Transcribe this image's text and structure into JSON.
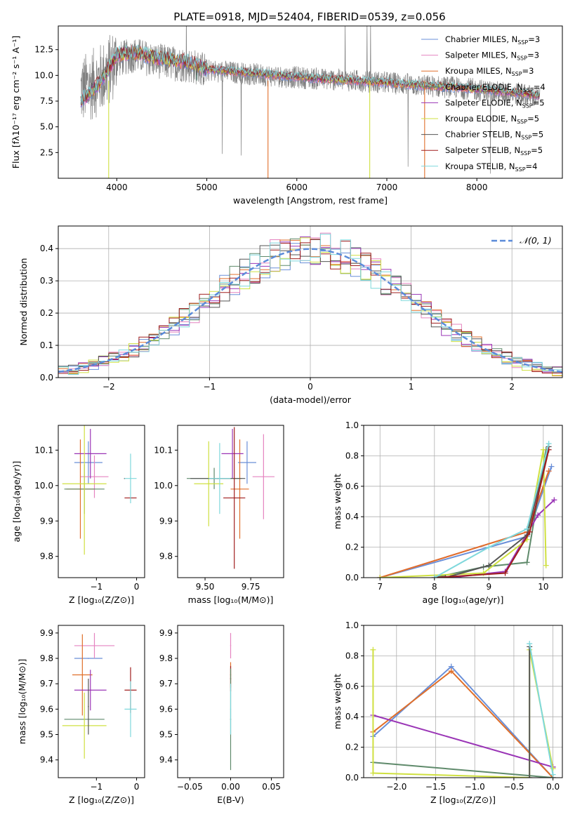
{
  "title": "PLATE=0918, MJD=52404, FIBERID=0539, z=0.056",
  "colors": {
    "Chabrier MILES": "#6a8fd8",
    "Salpeter MILES": "#e584c0",
    "Kroupa MILES": "#e06f2a",
    "Chabrier ELODIE": "#5f8a6b",
    "Salpeter ELODIE": "#9a35b6",
    "Kroupa ELODIE": "#cfe040",
    "Chabrier STELIB": "#555555",
    "Salpeter STELIB": "#a01e1e",
    "Kroupa STELIB": "#7fd8dc",
    "data": "#808080",
    "normal": "#5b8bd9"
  },
  "chart_data": [
    {
      "id": "spectrum",
      "type": "line",
      "title": "PLATE=0918, MJD=52404, FIBERID=0539, z=0.056",
      "xlabel": "wavelength [Angstrom, rest frame]",
      "ylabel": "Flux [fλ10⁻¹⁷ erg cm⁻² s⁻¹ A⁻¹]",
      "xlim": [
        3350,
        8950
      ],
      "ylim": [
        0,
        14.8
      ],
      "xticks": [
        "4000",
        "5000",
        "6000",
        "7000",
        "8000"
      ],
      "yticks": [
        "2.5",
        "5.0",
        "7.5",
        "10.0",
        "12.5"
      ],
      "legend_position": "top-right",
      "legend": [
        {
          "main": "Chabrier MILES, N",
          "sub": "SSP",
          "tail": "=3",
          "color": "#6a8fd8"
        },
        {
          "main": "Salpeter MILES, N",
          "sub": "SSP",
          "tail": "=3",
          "color": "#e584c0"
        },
        {
          "main": "Kroupa MILES, N",
          "sub": "SSP",
          "tail": "=3",
          "color": "#e06f2a"
        },
        {
          "main": "Chabrier ELODIE, N",
          "sub": "SSP",
          "tail": "=4",
          "color": "#5f8a6b"
        },
        {
          "main": "Salpeter ELODIE, N",
          "sub": "SSP",
          "tail": "=5",
          "color": "#9a35b6"
        },
        {
          "main": "Kroupa ELODIE, N",
          "sub": "SSP",
          "tail": "=5",
          "color": "#cfe040"
        },
        {
          "main": "Chabrier STELIB, N",
          "sub": "SSP",
          "tail": "=5",
          "color": "#555555"
        },
        {
          "main": "Salpeter STELIB, N",
          "sub": "SSP",
          "tail": "=5",
          "color": "#a01e1e"
        },
        {
          "main": "Kroupa STELIB, N",
          "sub": "SSP",
          "tail": "=4",
          "color": "#7fd8dc"
        }
      ],
      "series": [
        {
          "name": "data",
          "x": [
            3600,
            3700,
            3800,
            3900,
            4000,
            4200,
            4400,
            4600,
            4800,
            5000,
            5400,
            5800,
            6200,
            6600,
            7000,
            7400,
            7800,
            8200,
            8500,
            8700
          ],
          "y": [
            8.5,
            9.0,
            9.5,
            10.3,
            11.5,
            12.0,
            11.5,
            11.2,
            11.0,
            10.5,
            10.2,
            9.9,
            9.7,
            9.5,
            9.3,
            9.0,
            8.8,
            8.4,
            8.2,
            7.8
          ]
        },
        {
          "name": "model",
          "x": [
            3600,
            3700,
            3800,
            3900,
            4000,
            4200,
            4400,
            4600,
            4800,
            5000,
            5400,
            5800,
            6200,
            6600,
            7000,
            7400,
            7800,
            8200,
            8500,
            8700
          ],
          "y": [
            7.5,
            8.3,
            9.2,
            10.5,
            12.0,
            12.2,
            11.8,
            11.5,
            11.3,
            10.6,
            10.3,
            10.0,
            9.7,
            9.5,
            9.3,
            9.0,
            8.8,
            8.5,
            8.3,
            8.0
          ]
        }
      ]
    },
    {
      "id": "residuals",
      "type": "line",
      "xlabel": "(data-model)/error",
      "ylabel": "Normed distribution",
      "xlim": [
        -2.5,
        2.5
      ],
      "ylim": [
        0,
        0.47
      ],
      "xticks": [
        "−2",
        "−1",
        "0",
        "1",
        "2"
      ],
      "yticks": [
        "0.0",
        "0.1",
        "0.2",
        "0.3",
        "0.4"
      ],
      "grid": true,
      "legend_position": "top-right",
      "legend_label": "𝒩(0, 1)",
      "normal": {
        "mean": 0,
        "sigma": 1
      },
      "bin_edges_range": [
        -2.5,
        2.5
      ],
      "bin_width": 0.1
    },
    {
      "id": "age_vs_Z",
      "type": "scatter",
      "xlabel": "Z [log₁₀(Z/Z⊙)]",
      "ylabel": "age  [log₁₀(age/yr)]",
      "xlim": [
        -1.95,
        0.2
      ],
      "ylim": [
        9.74,
        10.17
      ],
      "xticks": [
        "−1",
        "0"
      ],
      "yticks": [
        "9.8",
        "9.9",
        "10.0",
        "10.1"
      ],
      "points": [
        {
          "series": "Chabrier MILES",
          "x": -1.2,
          "y": 10.065,
          "xerr": 0.35,
          "yerr": 0.06
        },
        {
          "series": "Salpeter MILES",
          "x": -1.05,
          "y": 10.025,
          "xerr": 0.35,
          "yerr": 0.06
        },
        {
          "series": "Kroupa MILES",
          "x": -1.4,
          "y": 9.99,
          "xerr": 0.35,
          "yerr": 0.14
        },
        {
          "series": "Chabrier ELODIE",
          "x": -1.3,
          "y": 9.99,
          "xerr": 0.5,
          "yerr": 0.07
        },
        {
          "series": "Salpeter ELODIE",
          "x": -1.15,
          "y": 10.09,
          "xerr": 0.4,
          "yerr": 0.07
        },
        {
          "series": "Kroupa ELODIE",
          "x": -1.3,
          "y": 10.005,
          "xerr": 0.55,
          "yerr": 0.2
        },
        {
          "series": "Chabrier STELIB",
          "x": -0.3,
          "y": 10.02,
          "xerr": 0.0,
          "yerr": 0.0
        },
        {
          "series": "Salpeter STELIB",
          "x": -0.15,
          "y": 9.965,
          "xerr": 0.15,
          "yerr": 0.0
        },
        {
          "series": "Kroupa STELIB",
          "x": -0.15,
          "y": 10.02,
          "xerr": 0.15,
          "yerr": 0.07
        }
      ]
    },
    {
      "id": "age_vs_mass",
      "type": "scatter",
      "xlabel": "mass [log₁₀(M/M⊙)]",
      "xlim": [
        9.35,
        9.93
      ],
      "ylim": [
        9.74,
        10.17
      ],
      "xticks": [
        "9.50",
        "9.75"
      ],
      "yticks": [
        "9.8",
        "9.9",
        "10.0",
        "10.1"
      ],
      "points": [
        {
          "series": "Chabrier MILES",
          "x": 9.73,
          "y": 10.065,
          "xerr": 0.05,
          "yerr": 0.06
        },
        {
          "series": "Salpeter MILES",
          "x": 9.82,
          "y": 10.025,
          "xerr": 0.06,
          "yerr": 0.12
        },
        {
          "series": "Kroupa MILES",
          "x": 9.69,
          "y": 9.99,
          "xerr": 0.05,
          "yerr": 0.14
        },
        {
          "series": "Chabrier ELODIE",
          "x": 9.55,
          "y": 10.02,
          "xerr": 0.15,
          "yerr": 0.03
        },
        {
          "series": "Salpeter ELODIE",
          "x": 9.65,
          "y": 10.09,
          "xerr": 0.06,
          "yerr": 0.07
        },
        {
          "series": "Kroupa ELODIE",
          "x": 9.52,
          "y": 10.005,
          "xerr": 0.08,
          "yerr": 0.12
        },
        {
          "series": "Chabrier STELIB",
          "x": 9.57,
          "y": 10.02,
          "xerr": 0.15,
          "yerr": 0.0
        },
        {
          "series": "Salpeter STELIB",
          "x": 9.66,
          "y": 9.965,
          "xerr": 0.06,
          "yerr": 0.2
        },
        {
          "series": "Kroupa STELIB",
          "x": 9.58,
          "y": 10.02,
          "xerr": 0.06,
          "yerr": 0.1
        }
      ]
    },
    {
      "id": "weight_vs_age",
      "type": "line",
      "xlabel": "age  [log₁₀(age/yr)]",
      "ylabel": "mass weight",
      "xlim": [
        6.7,
        10.35
      ],
      "ylim": [
        0,
        1.0
      ],
      "xticks": [
        "7",
        "8",
        "9",
        "10"
      ],
      "yticks": [
        "0.0",
        "0.2",
        "0.4",
        "0.6",
        "0.8",
        "1.0"
      ],
      "grid": true,
      "series": [
        {
          "name": "Chabrier MILES",
          "x": [
            7.0,
            9.7,
            10.15
          ],
          "y": [
            0.0,
            0.27,
            0.73
          ]
        },
        {
          "name": "Salpeter MILES",
          "x": [
            7.0,
            9.7,
            10.1
          ],
          "y": [
            0.0,
            0.3,
            0.7
          ]
        },
        {
          "name": "Kroupa MILES",
          "x": [
            7.0,
            9.7,
            10.1
          ],
          "y": [
            0.0,
            0.3,
            0.7
          ]
        },
        {
          "name": "Chabrier ELODIE",
          "x": [
            8.0,
            8.9,
            9.7,
            10.05
          ],
          "y": [
            0.0,
            0.07,
            0.1,
            0.84
          ]
        },
        {
          "name": "Salpeter ELODIE",
          "x": [
            8.3,
            9.3,
            9.9,
            10.2
          ],
          "y": [
            0.0,
            0.04,
            0.41,
            0.51
          ]
        },
        {
          "name": "Kroupa ELODIE",
          "x": [
            7.0,
            8.9,
            9.7,
            10.0,
            10.05
          ],
          "y": [
            0.0,
            0.03,
            0.25,
            0.84,
            0.08
          ]
        },
        {
          "name": "Chabrier STELIB",
          "x": [
            8.2,
            9.0,
            9.7,
            10.1
          ],
          "y": [
            0.0,
            0.08,
            0.28,
            0.86
          ]
        },
        {
          "name": "Salpeter STELIB",
          "x": [
            8.0,
            9.3,
            9.75,
            10.1
          ],
          "y": [
            0.0,
            0.03,
            0.3,
            0.84
          ]
        },
        {
          "name": "Kroupa STELIB",
          "x": [
            8.0,
            9.0,
            9.7,
            10.1
          ],
          "y": [
            0.0,
            0.2,
            0.32,
            0.88
          ]
        }
      ]
    },
    {
      "id": "mass_vs_Z",
      "type": "scatter",
      "xlabel": "Z [log₁₀(Z/Z⊙)]",
      "ylabel": "mass [log₁₀(M/M⊙)]",
      "xlim": [
        -1.95,
        0.2
      ],
      "ylim": [
        9.33,
        9.93
      ],
      "xticks": [
        "−1",
        "0"
      ],
      "yticks": [
        "9.4",
        "9.5",
        "9.6",
        "9.7",
        "9.8",
        "9.9"
      ],
      "points": [
        {
          "series": "Chabrier MILES",
          "x": -1.2,
          "y": 9.8,
          "xerr": 0.35,
          "yerr": 0.0
        },
        {
          "series": "Salpeter MILES",
          "x": -1.05,
          "y": 9.85,
          "xerr": 0.5,
          "yerr": 0.05
        },
        {
          "series": "Kroupa MILES",
          "x": -1.35,
          "y": 9.735,
          "xerr": 0.25,
          "yerr": 0.16
        },
        {
          "series": "Chabrier ELODIE",
          "x": -1.3,
          "y": 9.56,
          "xerr": 0.5,
          "yerr": 0.0
        },
        {
          "series": "Salpeter ELODIE",
          "x": -1.15,
          "y": 9.675,
          "xerr": 0.4,
          "yerr": 0.08
        },
        {
          "series": "Kroupa ELODIE",
          "x": -1.3,
          "y": 9.535,
          "xerr": 0.55,
          "yerr": 0.13
        },
        {
          "series": "Chabrier STELIB",
          "x": -1.2,
          "y": 9.61,
          "xerr": 0.0,
          "yerr": 0.11
        },
        {
          "series": "Salpeter STELIB",
          "x": -0.15,
          "y": 9.675,
          "xerr": 0.15,
          "yerr": 0.09
        },
        {
          "series": "Kroupa STELIB",
          "x": -0.15,
          "y": 9.6,
          "xerr": 0.15,
          "yerr": 0.11
        }
      ]
    },
    {
      "id": "mass_vs_ebv",
      "type": "scatter",
      "xlabel": "E(B-V)",
      "xlim": [
        -0.065,
        0.065
      ],
      "ylim": [
        9.33,
        9.93
      ],
      "xticks": [
        "−0.05",
        "0.00",
        "0.05"
      ],
      "yticks": [
        "9.4",
        "9.5",
        "9.6",
        "9.7",
        "9.8",
        "9.9"
      ],
      "points": [
        {
          "series": "Salpeter MILES",
          "x": 0.0,
          "y": 9.85,
          "xerr": 0.0,
          "yerr": 0.05
        },
        {
          "series": "Kroupa MILES",
          "x": 0.0,
          "y": 9.735,
          "xerr": 0.0,
          "yerr": 0.05
        },
        {
          "series": "Salpeter STELIB",
          "x": 0.0,
          "y": 9.72,
          "xerr": 0.0,
          "yerr": 0.05
        },
        {
          "series": "Chabrier ELODIE",
          "x": 0.0,
          "y": 9.56,
          "xerr": 0.0,
          "yerr": 0.2
        },
        {
          "series": "Kroupa STELIB",
          "x": 0.0,
          "y": 9.6,
          "xerr": 0.0,
          "yerr": 0.1
        }
      ]
    },
    {
      "id": "weight_vs_Z",
      "type": "line",
      "xlabel": "Z [log₁₀(Z/Z⊙)]",
      "ylabel": "mass weight",
      "xlim": [
        -2.42,
        0.12
      ],
      "ylim": [
        0,
        1.0
      ],
      "xticks": [
        "−2.0",
        "−1.5",
        "−1.0",
        "−0.5",
        "0.0"
      ],
      "yticks": [
        "0.0",
        "0.2",
        "0.4",
        "0.6",
        "0.8",
        "1.0"
      ],
      "grid": true,
      "series": [
        {
          "name": "Chabrier MILES",
          "x": [
            -2.3,
            -1.3,
            0.0
          ],
          "y": [
            0.27,
            0.73,
            0.0
          ]
        },
        {
          "name": "Kroupa MILES",
          "x": [
            -2.3,
            -1.3,
            0.0
          ],
          "y": [
            0.3,
            0.7,
            0.0
          ]
        },
        {
          "name": "Salpeter ELODIE",
          "x": [
            -2.3,
            0.0
          ],
          "y": [
            0.41,
            0.07
          ]
        },
        {
          "name": "Chabrier ELODIE",
          "x": [
            -2.3,
            0.0
          ],
          "y": [
            0.1,
            0.0
          ]
        },
        {
          "name": "Kroupa ELODIE",
          "x": [
            -2.3,
            -2.3,
            -0.3,
            -0.3,
            0.0
          ],
          "y": [
            0.84,
            0.03,
            0.0,
            0.84,
            0.06
          ]
        },
        {
          "name": "Chabrier STELIB",
          "x": [
            -0.3,
            -0.3
          ],
          "y": [
            0.86,
            0.0
          ]
        },
        {
          "name": "Kroupa STELIB",
          "x": [
            -0.3,
            0.0
          ],
          "y": [
            0.88,
            0.02
          ]
        }
      ]
    }
  ]
}
